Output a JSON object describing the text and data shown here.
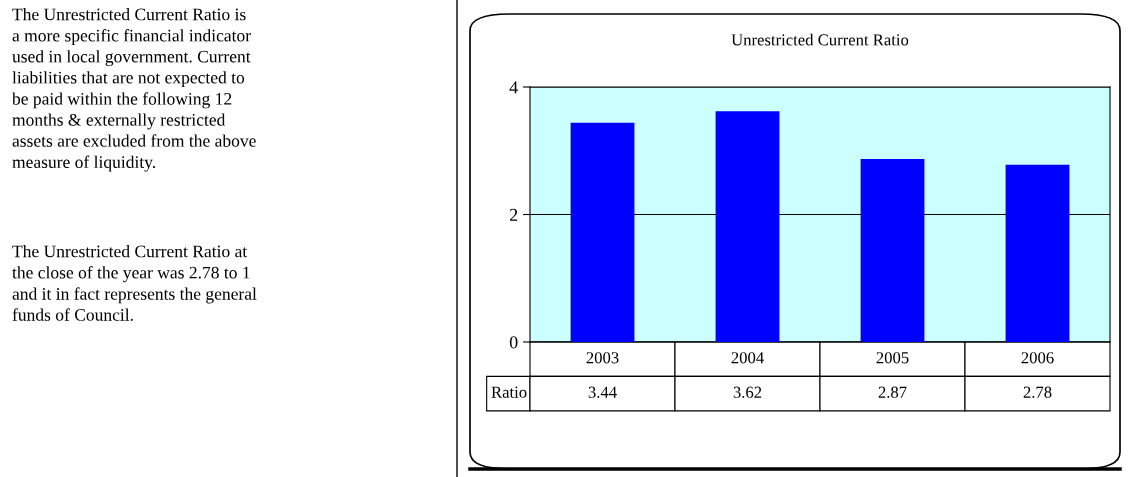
{
  "chart_data": {
    "type": "bar",
    "title": "Unrestricted Current Ratio",
    "categories": [
      "2003",
      "2004",
      "2005",
      "2006"
    ],
    "series": [
      {
        "name": "Ratio",
        "color": "#0000ff",
        "values": [
          3.44,
          3.62,
          2.87,
          2.78
        ]
      }
    ],
    "ylim": [
      0,
      4
    ],
    "yticks": [
      0,
      2,
      4
    ],
    "grid": "y",
    "legend": false,
    "data_labels": true,
    "annotations": [
      "The Unrestricted Current Ratio is\na more specific financial indicator\nused in local government. Current\nliabilities that are not expected to\nbe paid within the following 12\nmonths & externally restricted\nassets are excluded from the above\nmeasure of liquidity.",
      "The Unrestricted Current Ratio at\nthe close of the year was 2.78 to 1\nand it in fact represents the general\nfunds of Council."
    ]
  }
}
